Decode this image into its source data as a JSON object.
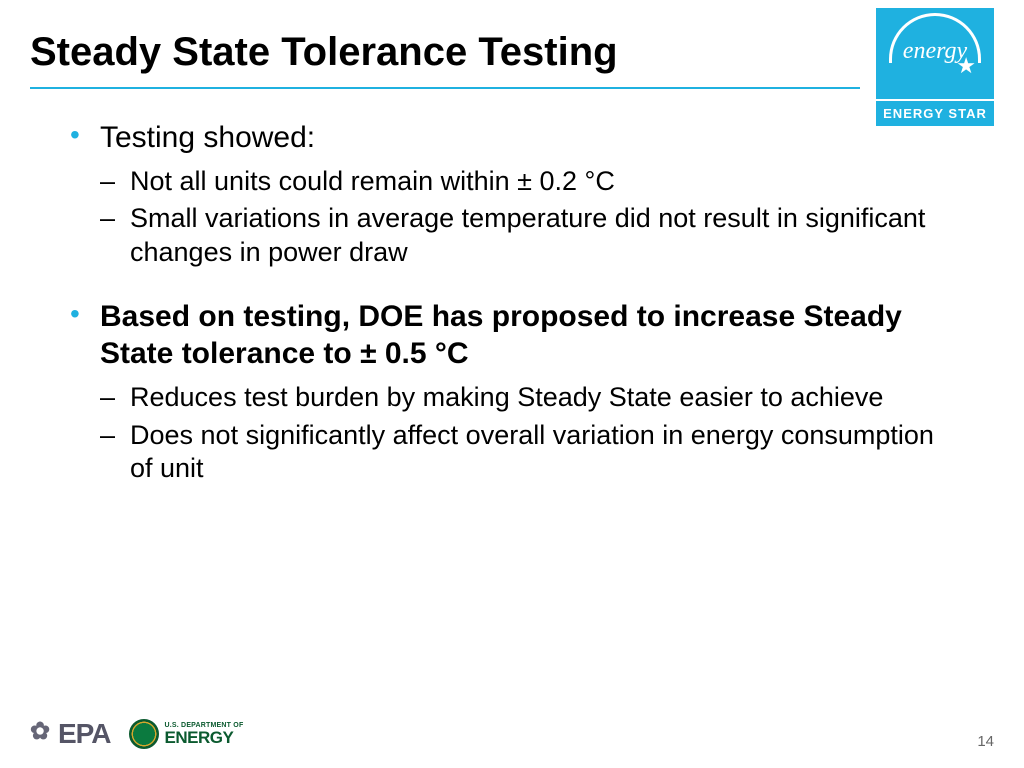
{
  "slide": {
    "title": "Steady State Tolerance Testing",
    "accent_color": "#1fb1e0",
    "bullets": [
      {
        "text": "Testing showed:",
        "bold": false,
        "sub": [
          "Not all units could remain within ± 0.2 °C",
          "Small variations in average temperature did not result in significant changes in power draw"
        ]
      },
      {
        "text": "Based on testing, DOE has proposed to increase Steady State tolerance to ± 0.5 °C",
        "bold": true,
        "sub": [
          "Reduces test burden by making Steady State easier to achieve",
          "Does not significantly affect overall variation in energy consumption of unit"
        ]
      }
    ]
  },
  "logo": {
    "script": "energy",
    "label": "ENERGY STAR"
  },
  "footer": {
    "epa": "EPA",
    "doe_small": "U.S. DEPARTMENT OF",
    "doe_big": "ENERGY",
    "page": "14"
  }
}
